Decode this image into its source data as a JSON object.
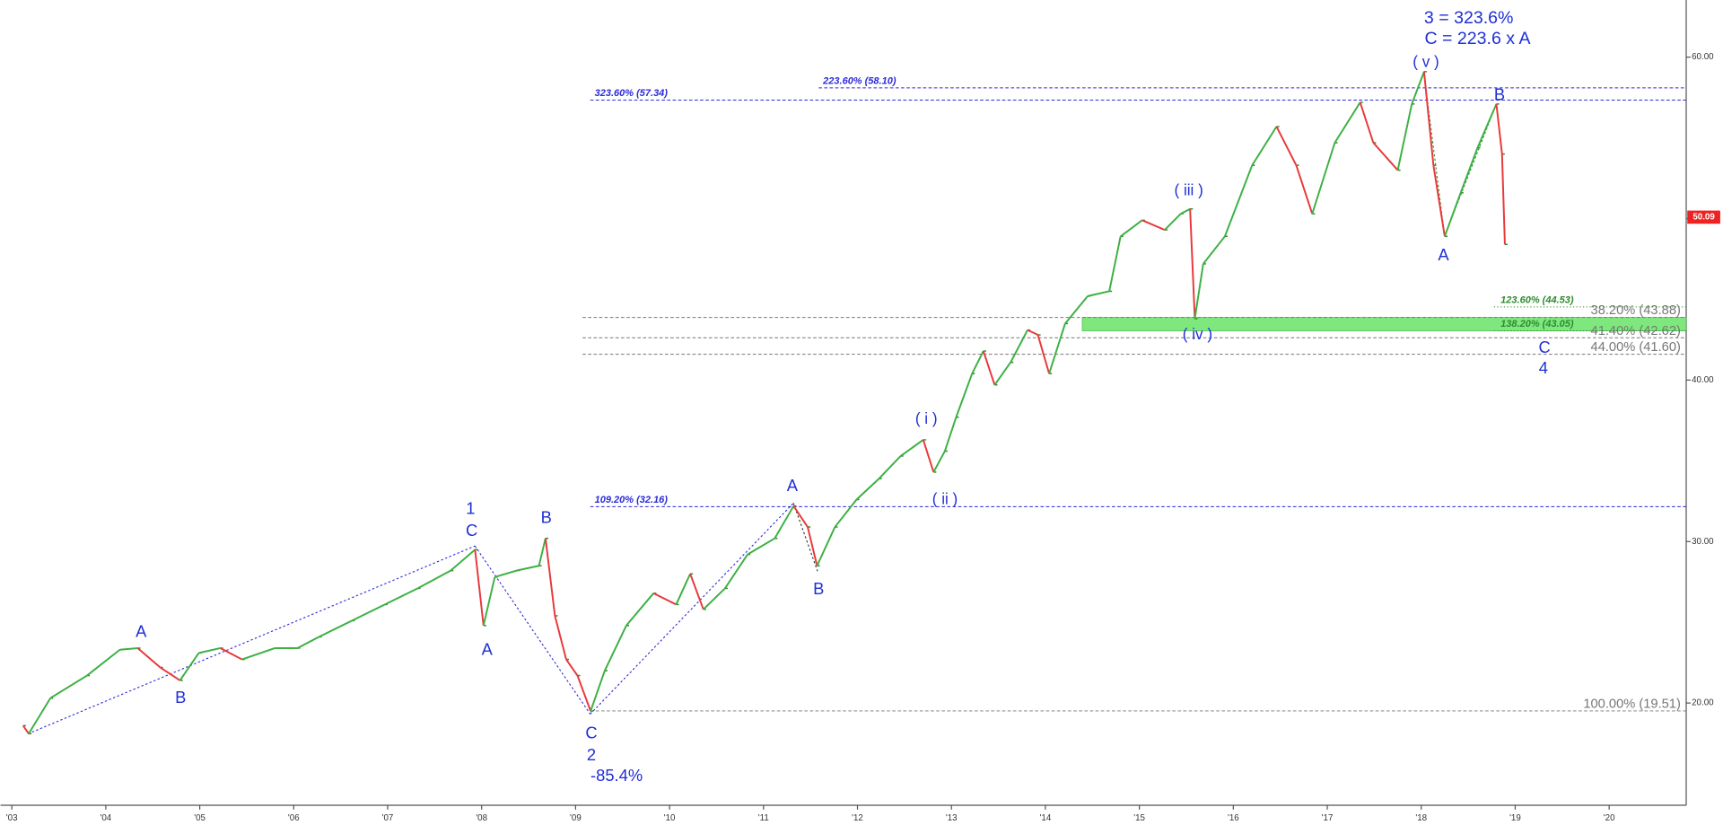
{
  "chart_data": {
    "type": "line",
    "up_color": "#3cb043",
    "down_color": "#e8383b",
    "series": [
      {
        "name": "Price",
        "x": [
          2003.12,
          2003.18,
          2003.41,
          2003.8,
          2004.15,
          2004.34,
          2004.58,
          2004.79,
          2004.99,
          2005.22,
          2005.45,
          2005.8,
          2006.04,
          2006.27,
          2006.62,
          2006.97,
          2007.32,
          2007.67,
          2007.93,
          2008.02,
          2008.14,
          2008.37,
          2008.61,
          2008.68,
          2008.78,
          2008.9,
          2009.02,
          2009.16,
          2009.31,
          2009.54,
          2009.83,
          2010.07,
          2010.22,
          2010.36,
          2010.59,
          2010.83,
          2011.12,
          2011.32,
          2011.47,
          2011.57,
          2011.76,
          2011.99,
          2012.23,
          2012.46,
          2012.7,
          2012.81,
          2012.93,
          2013.05,
          2013.22,
          2013.34,
          2013.46,
          2013.63,
          2013.81,
          2013.92,
          2014.04,
          2014.21,
          2014.45,
          2014.68,
          2014.8,
          2015.03,
          2015.27,
          2015.44,
          2015.54,
          2015.59,
          2015.68,
          2015.91,
          2016.2,
          2016.46,
          2016.67,
          2016.84,
          2017.08,
          2017.35,
          2017.49,
          2017.75,
          2017.9,
          2018.03,
          2018.13,
          2018.25,
          2018.42,
          2018.6,
          2018.8,
          2018.86,
          2018.89
        ],
        "values": [
          18.6,
          18.1,
          20.3,
          21.7,
          23.3,
          23.4,
          22.2,
          21.4,
          23.1,
          23.4,
          22.7,
          23.4,
          23.4,
          24.1,
          25.1,
          26.1,
          27.1,
          28.2,
          29.5,
          24.8,
          27.8,
          28.2,
          28.5,
          30.2,
          25.4,
          22.7,
          21.7,
          19.5,
          22.0,
          24.8,
          26.8,
          26.1,
          28.0,
          25.8,
          27.1,
          29.2,
          30.2,
          32.2,
          30.9,
          28.5,
          30.9,
          32.6,
          33.9,
          35.3,
          36.3,
          34.3,
          35.6,
          37.7,
          40.4,
          41.8,
          39.7,
          41.1,
          43.1,
          42.8,
          40.4,
          43.5,
          45.2,
          45.5,
          48.9,
          49.9,
          49.3,
          50.3,
          50.6,
          43.8,
          47.2,
          48.9,
          53.3,
          55.7,
          53.3,
          50.3,
          54.7,
          57.2,
          54.7,
          53.0,
          57.1,
          59.1,
          53.3,
          48.9,
          51.6,
          54.4,
          57.1,
          54.0,
          48.4
        ]
      }
    ],
    "xlim": [
      2002.88,
      2020.82
    ],
    "ylim": [
      13.67,
      63.54
    ],
    "xticks": [
      {
        "value": 2003,
        "label": "'03"
      },
      {
        "value": 2004,
        "label": "'04"
      },
      {
        "value": 2005,
        "label": "'05"
      },
      {
        "value": 2006,
        "label": "'06"
      },
      {
        "value": 2007,
        "label": "'07"
      },
      {
        "value": 2008,
        "label": "'08"
      },
      {
        "value": 2009,
        "label": "'09"
      },
      {
        "value": 2010,
        "label": "'10"
      },
      {
        "value": 2011,
        "label": "'11"
      },
      {
        "value": 2012,
        "label": "'12"
      },
      {
        "value": 2013,
        "label": "'13"
      },
      {
        "value": 2014,
        "label": "'14"
      },
      {
        "value": 2015,
        "label": "'15"
      },
      {
        "value": 2016,
        "label": "'16"
      },
      {
        "value": 2017,
        "label": "'17"
      },
      {
        "value": 2018,
        "label": "'18"
      },
      {
        "value": 2019,
        "label": "'19"
      },
      {
        "value": 2020,
        "label": "'20"
      }
    ],
    "yticks": [
      {
        "value": 20,
        "label": "20.00"
      },
      {
        "value": 30,
        "label": "30.00"
      },
      {
        "value": 40,
        "label": "40.00"
      },
      {
        "value": 50,
        "label": "50.00"
      },
      {
        "value": 60,
        "label": "60.00"
      }
    ],
    "levels": [
      {
        "value": 57.34,
        "label": "323.60% (57.34)",
        "color": "#2b2bd9"
      },
      {
        "value": 58.1,
        "label": "223.60% (58.10)",
        "color": "#2b2bd9"
      },
      {
        "value": 32.16,
        "label": "109.20% (32.16)",
        "color": "#2b2bd9"
      },
      {
        "value": 43.88,
        "label": "38.20% (43.88)",
        "color": "#777777"
      },
      {
        "value": 42.62,
        "label": "41.40% (42.62)",
        "color": "#777777"
      },
      {
        "value": 41.6,
        "label": "44.00% (41.60)",
        "color": "#777777"
      },
      {
        "value": 19.51,
        "label": "100.00% (19.51)",
        "color": "#777777"
      },
      {
        "value": 44.53,
        "label": "123.60% (44.53)",
        "color": "#2e8b2e"
      },
      {
        "value": 43.05,
        "label": "138.20% (43.05)",
        "color": "#2e8b2e"
      }
    ],
    "zone": {
      "from": 43.88,
      "to": 43.05,
      "color": "#7ee87e"
    },
    "last_price": 50.09,
    "last_price_color": "#ee2222",
    "annotation_color": "#1f2fd6",
    "annotations": [
      "3 = 323.6%",
      "C = 223.6 x A",
      "( v )",
      "B",
      "A",
      "( iii )",
      "( iv )",
      "( i )",
      "( ii )",
      "A",
      "B",
      "1",
      "C",
      "B",
      "A",
      "A",
      "B",
      "C",
      "2",
      "-85.4%",
      "C",
      "4"
    ]
  }
}
